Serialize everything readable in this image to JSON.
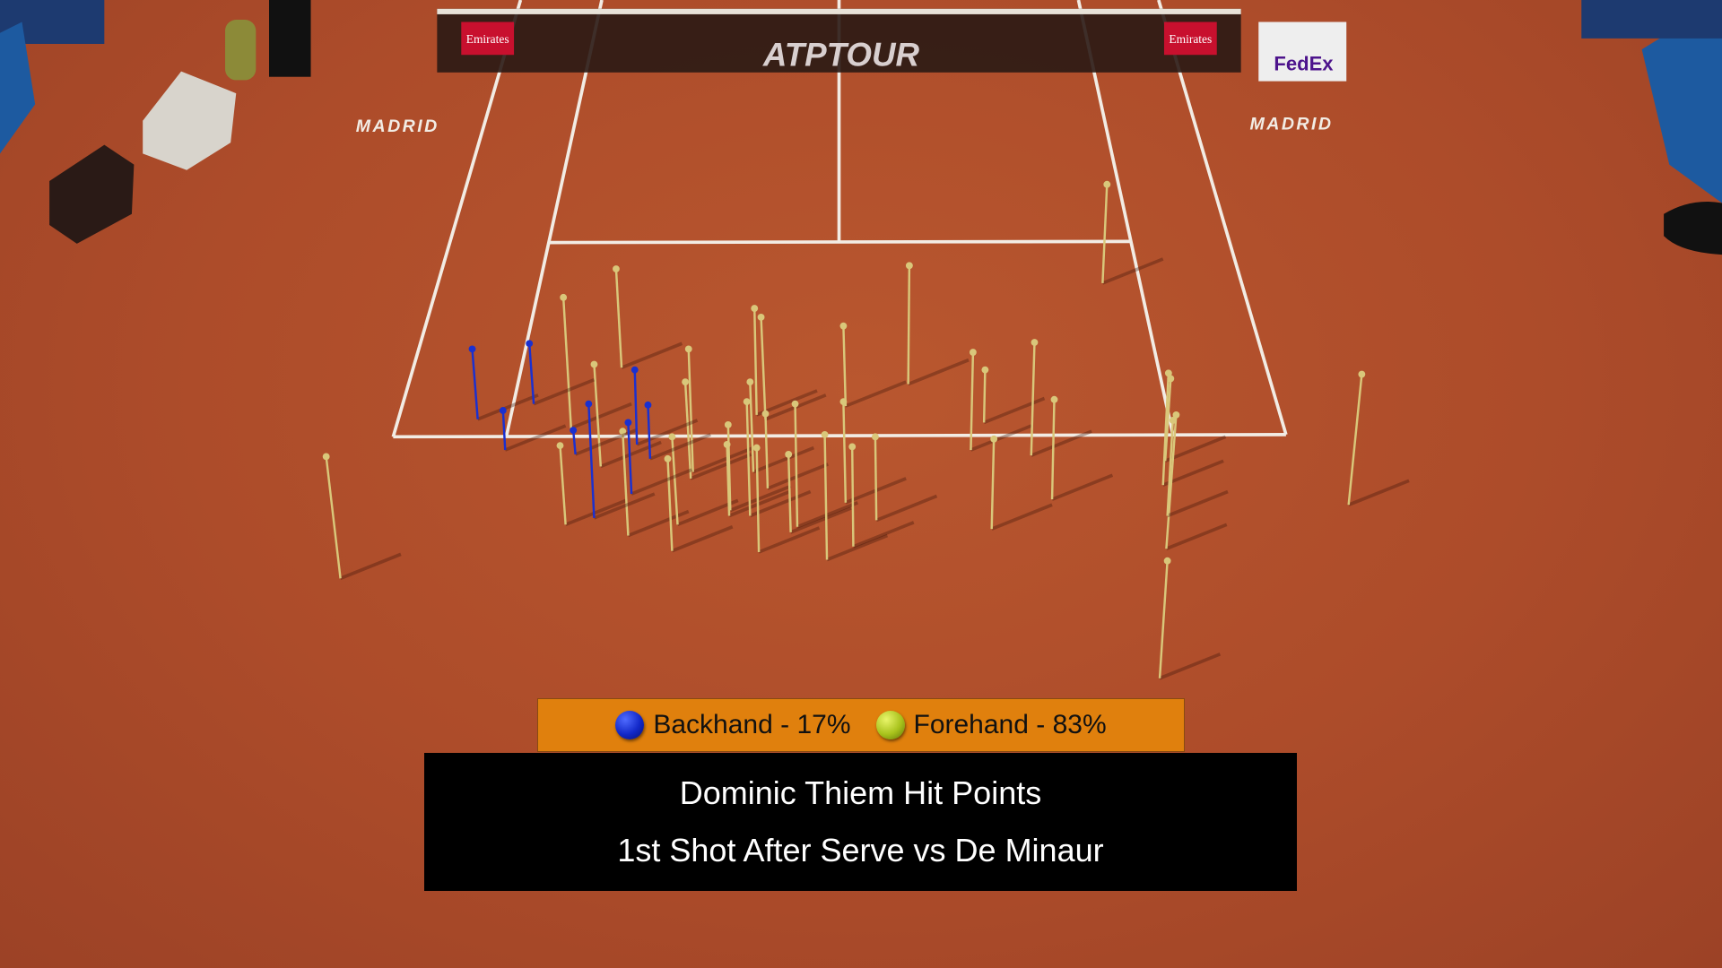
{
  "court": {
    "net_logo": "ATPTOUR",
    "net_sponsor_left": "Emirates",
    "net_sponsor_right": "Emirates",
    "court_text_left": "MADRID",
    "court_text_right": "MADRID",
    "board_sponsor": "FedEx",
    "surface_color": "#b5532f",
    "line_color": "#f2ece4"
  },
  "legend": {
    "items": [
      {
        "label": "Backhand - 17%",
        "color": "#1a30d0",
        "icon": "blue-tennis-ball-icon"
      },
      {
        "label": "Forehand - 83%",
        "color": "#b8cf2a",
        "icon": "yellow-tennis-ball-icon"
      }
    ]
  },
  "title": {
    "line1": "Dominic Thiem Hit Points",
    "line2": "1st Shot After Serve vs De Minaur"
  },
  "pin_colors": {
    "backhand": "#1a30d0",
    "forehand": "#d9c77a"
  }
}
